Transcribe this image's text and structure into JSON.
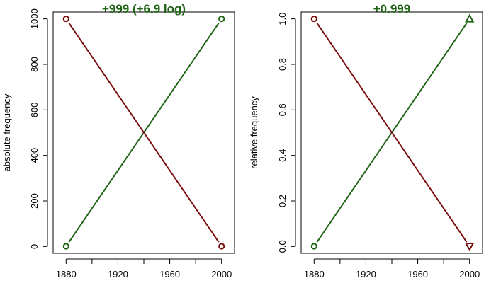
{
  "colors": {
    "rising": "#1f6315",
    "falling": "#7a0e0e",
    "title": "#1f6315"
  },
  "chart_data": [
    {
      "type": "line",
      "title": "+999 (+6.9 log)",
      "xlabel": "",
      "ylabel": "absolute frequency",
      "xlim": [
        1870,
        2010
      ],
      "ylim": [
        -30,
        1030
      ],
      "xticks": [
        1880,
        1920,
        1960,
        2000
      ],
      "xminor": [
        1900,
        1940,
        1980
      ],
      "yticks": [
        0,
        200,
        400,
        600,
        800,
        1000
      ],
      "ytick_labels": [
        "0",
        "200",
        "400",
        "600",
        "800",
        "1000"
      ],
      "series": [
        {
          "color": "rising",
          "x": [
            1880,
            2000
          ],
          "y": [
            1,
            1000
          ],
          "markers": [
            "circle",
            "circle"
          ]
        },
        {
          "color": "falling",
          "x": [
            1880,
            2000
          ],
          "y": [
            1000,
            1
          ],
          "markers": [
            "circle",
            "circle"
          ]
        }
      ]
    },
    {
      "type": "line",
      "title": "+0.999",
      "xlabel": "",
      "ylabel": "relative frequency",
      "xlim": [
        1870,
        2010
      ],
      "ylim": [
        -0.03,
        1.03
      ],
      "xticks": [
        1880,
        1920,
        1960,
        2000
      ],
      "xminor": [
        1900,
        1940,
        1980
      ],
      "yticks": [
        0,
        0.2,
        0.4,
        0.6,
        0.8,
        1.0
      ],
      "ytick_labels": [
        "0.0",
        "0.2",
        "0.4",
        "0.6",
        "0.8",
        "1.0"
      ],
      "series": [
        {
          "color": "rising",
          "x": [
            1880,
            2000
          ],
          "y": [
            0.001,
            1.0
          ],
          "markers": [
            "circle",
            "triangle-up"
          ]
        },
        {
          "color": "falling",
          "x": [
            1880,
            2000
          ],
          "y": [
            1.0,
            0.001
          ],
          "markers": [
            "circle",
            "triangle-down"
          ]
        }
      ]
    }
  ]
}
